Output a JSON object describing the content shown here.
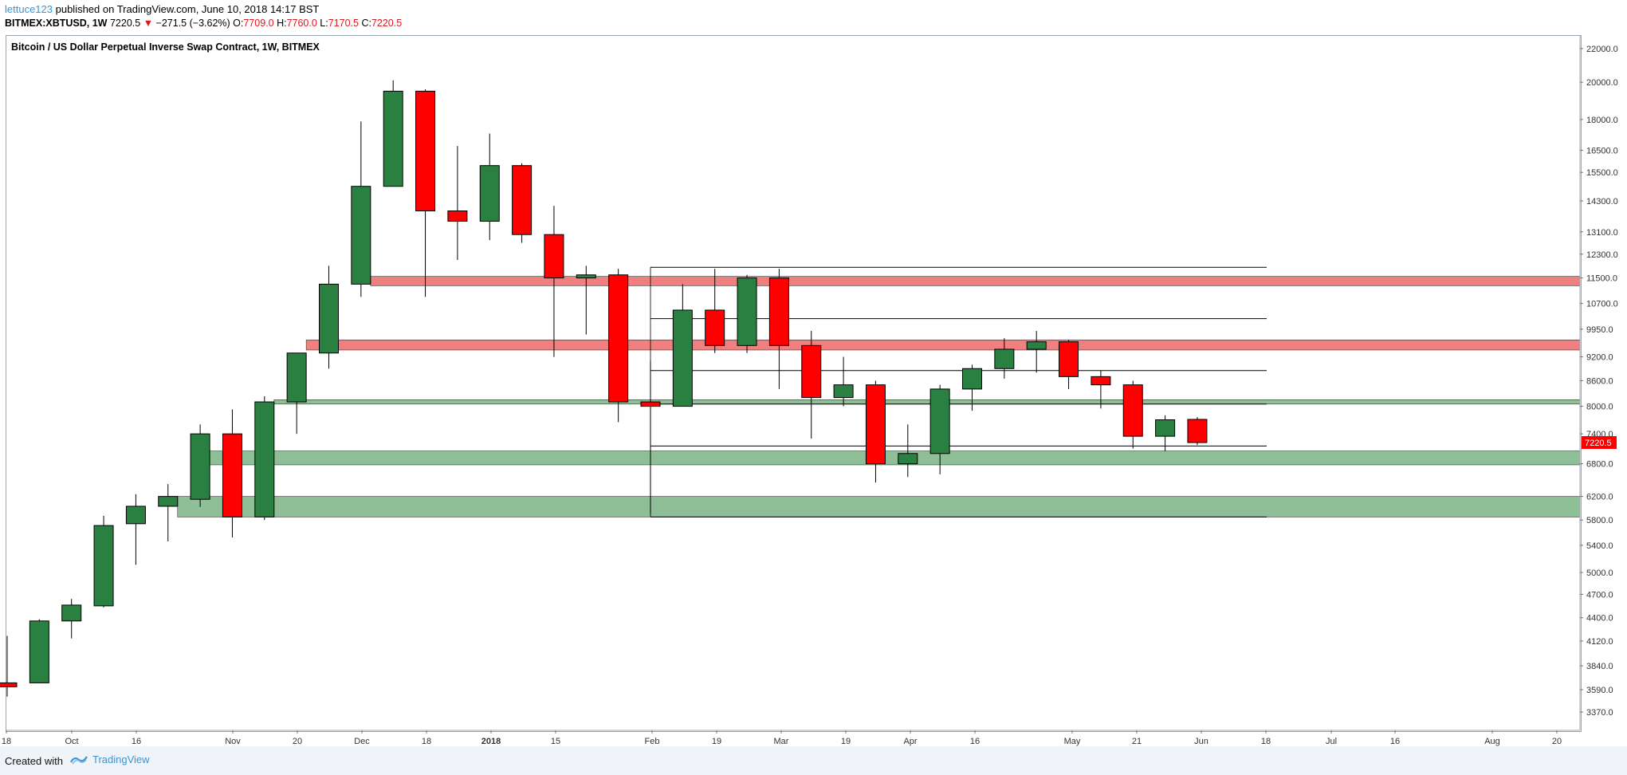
{
  "header": {
    "author": "lettuce123",
    "published": " published on TradingView.com, June 10, 2018 14:17 BST",
    "symbol": "BITMEX:XBTUSD, 1W",
    "last": "7220.5",
    "change": "−271.5 (−3.62%)",
    "o_label": "O:",
    "o_val": "7709.0",
    "h_label": "H:",
    "h_val": "7760.0",
    "l_label": "L:",
    "l_val": "7170.5",
    "c_label": "C:",
    "c_val": "7220.5"
  },
  "legend": "Bitcoin / US Dollar Perpetual Inverse Swap Contract, 1W, BITMEX",
  "footer": {
    "created": "Created with",
    "brand": "TradingView"
  },
  "colors": {
    "up": "#2a8040",
    "down": "#ff0000",
    "resistance": "#f08080",
    "support": "#8fbf96",
    "price_tag": "#ff0000"
  },
  "chart_data": {
    "type": "candlestick",
    "title": "Bitcoin / US Dollar Perpetual Inverse Swap Contract, 1W, BITMEX",
    "y_scale": "log",
    "ylim": [
      3200,
      22800
    ],
    "y_ticks": [
      "22000.0",
      "20000.0",
      "18000.0",
      "16500.0",
      "15500.0",
      "14300.0",
      "13100.0",
      "12300.0",
      "11500.0",
      "10700.0",
      "9950.0",
      "9200.0",
      "8600.0",
      "8000.0",
      "7400.0",
      "6800.0",
      "6200.0",
      "5800.0",
      "5400.0",
      "5000.0",
      "4700.0",
      "4400.0",
      "4120.0",
      "3840.0",
      "3590.0",
      "3370.0"
    ],
    "x_ticks": [
      "18",
      "Oct",
      "16",
      "Nov",
      "20",
      "Dec",
      "18",
      "2018",
      "15",
      "Feb",
      "19",
      "Mar",
      "19",
      "Apr",
      "16",
      "May",
      "21",
      "Jun",
      "18",
      "Jul",
      "16",
      "Aug",
      "20"
    ],
    "bold_x_tick": "2018",
    "last_price": "7220.5",
    "candles": [
      {
        "o": 3660,
        "h": 4180,
        "l": 3520,
        "c": 3620
      },
      {
        "o": 3660,
        "h": 4380,
        "l": 3660,
        "c": 4360
      },
      {
        "o": 4360,
        "h": 4640,
        "l": 4150,
        "c": 4560
      },
      {
        "o": 4550,
        "h": 5870,
        "l": 4530,
        "c": 5710
      },
      {
        "o": 5740,
        "h": 6240,
        "l": 5110,
        "c": 6030
      },
      {
        "o": 6030,
        "h": 6420,
        "l": 5460,
        "c": 6200
      },
      {
        "o": 6150,
        "h": 7600,
        "l": 6020,
        "c": 7400
      },
      {
        "o": 7400,
        "h": 7930,
        "l": 5520,
        "c": 5850
      },
      {
        "o": 5850,
        "h": 8230,
        "l": 5800,
        "c": 8100
      },
      {
        "o": 8100,
        "h": 9300,
        "l": 7400,
        "c": 9300
      },
      {
        "o": 9300,
        "h": 11900,
        "l": 8900,
        "c": 11300
      },
      {
        "o": 11300,
        "h": 17900,
        "l": 10900,
        "c": 14900
      },
      {
        "o": 14900,
        "h": 20100,
        "l": 14900,
        "c": 19500
      },
      {
        "o": 19500,
        "h": 19600,
        "l": 10900,
        "c": 13900
      },
      {
        "o": 13900,
        "h": 16700,
        "l": 12100,
        "c": 13500
      },
      {
        "o": 13500,
        "h": 17300,
        "l": 12800,
        "c": 15800
      },
      {
        "o": 15800,
        "h": 15900,
        "l": 12700,
        "c": 13000
      },
      {
        "o": 13000,
        "h": 14100,
        "l": 9200,
        "c": 11500
      },
      {
        "o": 11500,
        "h": 11900,
        "l": 9800,
        "c": 11600
      },
      {
        "o": 11600,
        "h": 11800,
        "l": 7650,
        "c": 8100
      },
      {
        "o": 8100,
        "h": 9100,
        "l": 5900,
        "c": 8000
      },
      {
        "o": 8000,
        "h": 11300,
        "l": 8000,
        "c": 10500
      },
      {
        "o": 10500,
        "h": 11800,
        "l": 9300,
        "c": 9500
      },
      {
        "o": 9500,
        "h": 11600,
        "l": 9300,
        "c": 11500
      },
      {
        "o": 11500,
        "h": 11800,
        "l": 8400,
        "c": 9500
      },
      {
        "o": 9500,
        "h": 9900,
        "l": 7300,
        "c": 8200
      },
      {
        "o": 8200,
        "h": 9200,
        "l": 8000,
        "c": 8500
      },
      {
        "o": 8500,
        "h": 8600,
        "l": 6450,
        "c": 6800
      },
      {
        "o": 6800,
        "h": 7600,
        "l": 6550,
        "c": 7000
      },
      {
        "o": 7000,
        "h": 8500,
        "l": 6600,
        "c": 8400
      },
      {
        "o": 8400,
        "h": 9000,
        "l": 7900,
        "c": 8900
      },
      {
        "o": 8900,
        "h": 9700,
        "l": 8650,
        "c": 9400
      },
      {
        "o": 9400,
        "h": 9900,
        "l": 8800,
        "c": 9600
      },
      {
        "o": 9600,
        "h": 9650,
        "l": 8400,
        "c": 8700
      },
      {
        "o": 8700,
        "h": 8850,
        "l": 7950,
        "c": 8500
      },
      {
        "o": 8500,
        "h": 8600,
        "l": 7100,
        "c": 7350
      },
      {
        "o": 7350,
        "h": 7800,
        "l": 7050,
        "c": 7700
      },
      {
        "o": 7709,
        "h": 7760,
        "l": 7170.5,
        "c": 7220.5
      }
    ],
    "zones": [
      {
        "kind": "resistance",
        "from": 11250,
        "to": 11550,
        "start": 11
      },
      {
        "kind": "resistance",
        "from": 9380,
        "to": 9650,
        "start": 9
      },
      {
        "kind": "support",
        "from": 8050,
        "to": 8150,
        "start": 8
      },
      {
        "kind": "support",
        "from": 6780,
        "to": 7050,
        "start": 6
      },
      {
        "kind": "support",
        "from": 5850,
        "to": 6200,
        "start": 5
      }
    ],
    "fib_levels": [
      11850,
      10250,
      8850,
      8050,
      7150,
      5850
    ]
  }
}
